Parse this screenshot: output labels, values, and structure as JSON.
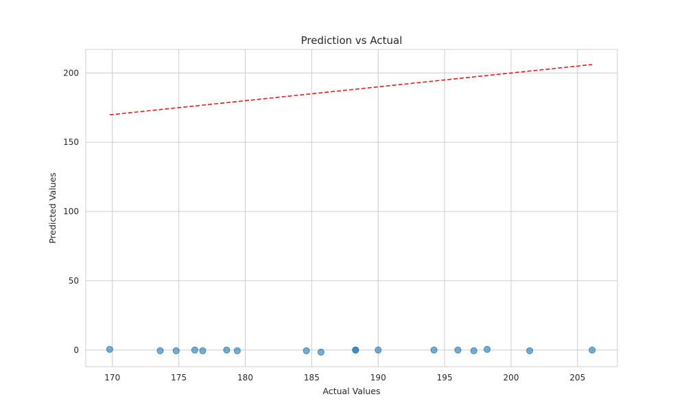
{
  "chart_data": {
    "type": "scatter",
    "title": "Prediction vs Actual",
    "xlabel": "Actual Values",
    "ylabel": "Predicted Values",
    "xlim": [
      168,
      208
    ],
    "ylim": [
      -12,
      217
    ],
    "xticks": [
      170,
      175,
      180,
      185,
      190,
      195,
      200,
      205
    ],
    "yticks": [
      0,
      50,
      100,
      150,
      200
    ],
    "xtick_labels": [
      "170",
      "175",
      "180",
      "185",
      "190",
      "195",
      "200",
      "205"
    ],
    "ytick_labels": [
      "0",
      "50",
      "100",
      "150",
      "200"
    ],
    "grid": true,
    "points": {
      "x": [
        169.8,
        173.6,
        174.8,
        176.2,
        176.8,
        178.6,
        179.4,
        184.6,
        185.7,
        188.3,
        188.3,
        190.0,
        194.2,
        196.0,
        197.2,
        198.2,
        201.4,
        206.1
      ],
      "y": [
        0.5,
        -0.5,
        -0.5,
        0.0,
        -0.5,
        0.0,
        -0.5,
        -0.5,
        -1.5,
        0.0,
        0.0,
        0.0,
        0.0,
        0.0,
        -0.5,
        0.5,
        -0.5,
        0.0
      ]
    },
    "reference_line": {
      "x": [
        169.8,
        206.1
      ],
      "y": [
        169.8,
        206.1
      ],
      "style": "dashed"
    },
    "colors": {
      "points": "#1f77b4",
      "line": "#e41a1c",
      "grid": "#cccccc",
      "frame": "#cccccc"
    }
  }
}
